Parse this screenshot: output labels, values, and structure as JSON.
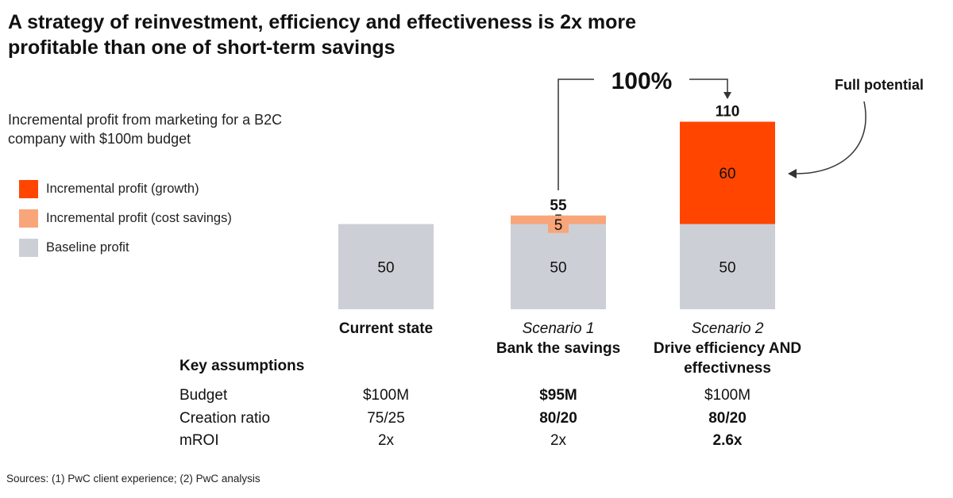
{
  "title": "A strategy of reinvestment, efficiency and effectiveness is 2x more profitable than one of short-term savings",
  "subtitle": "Incremental profit from marketing for a B2C company with $100m budget",
  "colors": {
    "growth": "#FF4500",
    "cost_savings": "#F8A57A",
    "baseline": "#CCD0D6",
    "text": "#111111"
  },
  "legend": [
    {
      "label": "Incremental profit (growth)",
      "color": "#FF4500"
    },
    {
      "label": "Incremental profit (cost savings)",
      "color": "#F8A57A"
    },
    {
      "label": "Baseline profit",
      "color": "#CCD0D6"
    }
  ],
  "chart_data": {
    "type": "bar",
    "stacked": true,
    "title": "Incremental profit from marketing for a B2C company with $100m budget",
    "ylim": [
      0,
      110
    ],
    "categories": [
      "Current state",
      "Scenario 1 Bank the savings",
      "Scenario 2 Drive efficiency AND effectivness"
    ],
    "series": [
      {
        "name": "Baseline profit",
        "values": [
          50,
          50,
          50
        ],
        "labels": [
          "50",
          "50",
          "50"
        ]
      },
      {
        "name": "Incremental profit (cost savings)",
        "values": [
          0,
          5,
          0
        ],
        "labels": [
          "",
          "5",
          ""
        ]
      },
      {
        "name": "Incremental profit (growth)",
        "values": [
          0,
          0,
          60
        ],
        "labels": [
          "",
          "",
          "60"
        ]
      }
    ],
    "totals": [
      "",
      "55",
      "110"
    ],
    "annotations": {
      "comparison": "100%",
      "full_potential": "Full potential"
    }
  },
  "scenarios": [
    {
      "name": "",
      "desc": "Current state"
    },
    {
      "name": "Scenario 1",
      "desc": "Bank the savings"
    },
    {
      "name": "Scenario 2",
      "desc": "Drive efficiency AND effectivness"
    }
  ],
  "assumptions": {
    "heading": "Key assumptions",
    "rows": [
      {
        "label": "Budget",
        "values": [
          "$100M",
          "$95M",
          "$100M"
        ],
        "bold": [
          false,
          true,
          false
        ]
      },
      {
        "label": "Creation ratio",
        "values": [
          "75/25",
          "80/20",
          "80/20"
        ],
        "bold": [
          false,
          true,
          true
        ]
      },
      {
        "label": "mROI",
        "values": [
          "2x",
          "2x",
          "2.6x"
        ],
        "bold": [
          false,
          false,
          true
        ]
      }
    ]
  },
  "source": "Sources: (1) PwC client experience; (2) PwC analysis"
}
